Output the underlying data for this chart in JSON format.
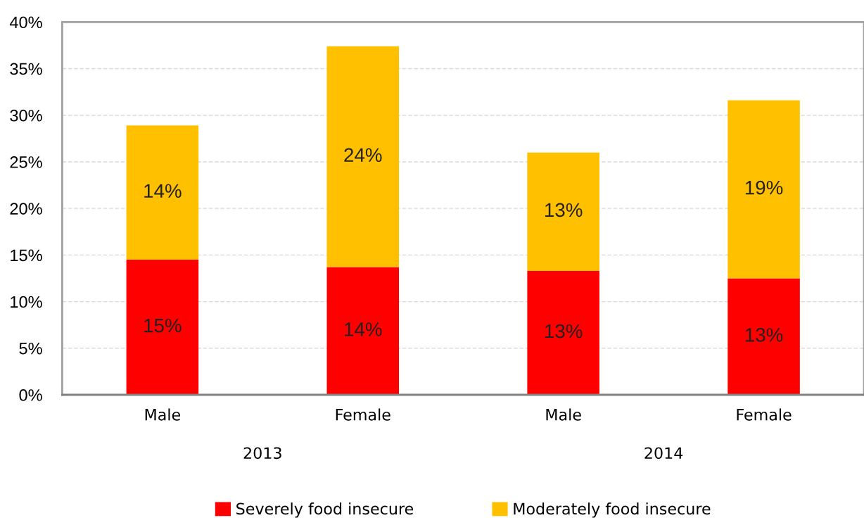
{
  "chart_data": {
    "type": "bar",
    "stacked": true,
    "categories": [
      "Male",
      "Female",
      "Male",
      "Female"
    ],
    "series": [
      {
        "name": "Severely food insecure",
        "color": "#ff0000",
        "values": [
          14.5,
          13.7,
          13.3,
          12.5
        ],
        "value_labels": [
          "15%",
          "14%",
          "13%",
          "13%"
        ]
      },
      {
        "name": "Moderately food insecure",
        "color": "#ffc000",
        "values": [
          14.4,
          23.7,
          12.7,
          19.1
        ],
        "value_labels": [
          "14%",
          "24%",
          "13%",
          "19%"
        ]
      }
    ],
    "annotations": [
      "2013",
      "2014"
    ],
    "ylim": [
      0,
      40
    ],
    "yticks": [
      {
        "value": 0,
        "label": "0%"
      },
      {
        "value": 5,
        "label": "5%"
      },
      {
        "value": 10,
        "label": "10%"
      },
      {
        "value": 15,
        "label": "15%"
      },
      {
        "value": 20,
        "label": "20%"
      },
      {
        "value": 25,
        "label": "25%"
      },
      {
        "value": 30,
        "label": "30%"
      },
      {
        "value": 35,
        "label": "35%"
      },
      {
        "value": 40,
        "label": "40%"
      }
    ],
    "grid": "y",
    "legend": "bottom"
  }
}
